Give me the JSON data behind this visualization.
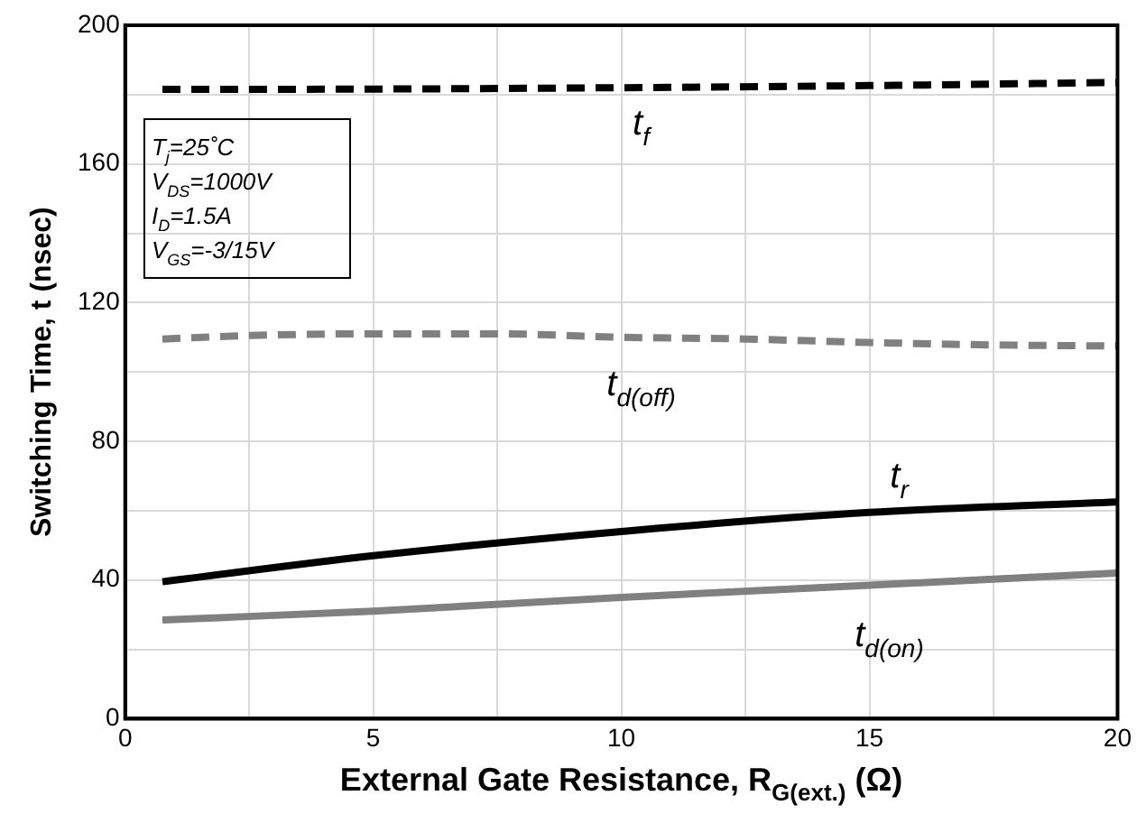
{
  "chart_data": {
    "type": "line",
    "xlabel": "External Gate Resistance, R$_{G(ext.)}$ (Ω)",
    "ylabel": "Switching Time, t (nsec)",
    "xlim": [
      0,
      20
    ],
    "xticks": [
      0,
      {
        "value": 2.5,
        "label": null
      },
      5,
      {
        "value": 7.5,
        "label": null
      },
      10,
      {
        "value": 12.5,
        "label": null
      },
      15,
      {
        "value": 17.5,
        "label": null
      },
      20
    ],
    "ylim": [
      0,
      200
    ],
    "yticks": [
      0,
      {
        "value": 20,
        "label": null
      },
      40,
      {
        "value": 60,
        "label": null
      },
      80,
      {
        "value": 100,
        "label": null
      },
      120,
      {
        "value": 140,
        "label": null
      },
      160,
      {
        "value": 180,
        "label": null
      },
      200
    ],
    "grid": true,
    "legend": false,
    "marker": "none",
    "series": [
      {
        "name": "t$_{f}$",
        "color": "#000000",
        "line_style": "dashed",
        "x": [
          0.75,
          5,
          10,
          15,
          20
        ],
        "values": [
          181.5,
          181.6,
          182,
          182.6,
          183.5
        ]
      },
      {
        "name": "t$_{d(off)}$",
        "color": "#808080",
        "line_style": "dashed",
        "x": [
          0.75,
          2.5,
          5,
          7.5,
          10,
          12.5,
          15,
          17.5,
          20
        ],
        "values": [
          109.5,
          110.5,
          111,
          111,
          110,
          109.5,
          108.5,
          107.8,
          107.5
        ]
      },
      {
        "name": "t$_{r}$",
        "color": "#000000",
        "line_style": "solid",
        "x": [
          0.75,
          5,
          10,
          15,
          20
        ],
        "values": [
          39.5,
          47,
          54,
          59.5,
          62.5
        ]
      },
      {
        "name": "t$_{d(on)}$",
        "color": "#808080",
        "line_style": "solid",
        "x": [
          0.75,
          5,
          10,
          15,
          20
        ],
        "values": [
          28.5,
          31,
          35,
          38.5,
          42
        ]
      }
    ],
    "annotations": [
      "T$_{j}$=25˚C",
      "V$_{DS}$=1000V",
      "I$_{D}$=1.5A",
      "V$_{GS}$=-3/15V"
    ]
  }
}
